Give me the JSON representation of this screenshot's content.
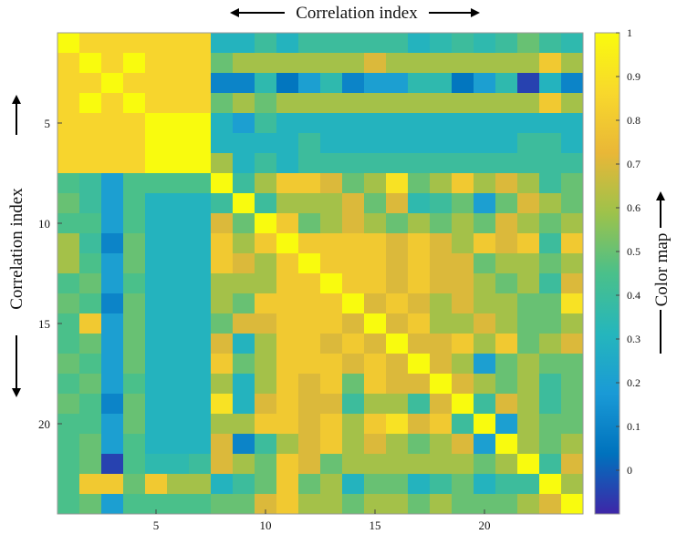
{
  "chart_data": {
    "type": "heatmap",
    "title": "Correlation index",
    "xlabel": "Correlation index",
    "ylabel": "Correlation index",
    "colorbar_label": "Color map",
    "n_rows": 24,
    "n_cols": 24,
    "x_ticks": [
      5,
      10,
      15,
      20
    ],
    "y_ticks": [
      5,
      10,
      15,
      20
    ],
    "colorbar_range": [
      -0.1,
      1.0
    ],
    "colorbar_ticks": [
      "0",
      "0.1",
      "0.2",
      "0.3",
      "0.4",
      "0.5",
      "0.6",
      "0.7",
      "0.8",
      "0.9",
      "1"
    ],
    "colormap": [
      "#3e26a8",
      "#0072bd",
      "#1a9ad6",
      "#25b6bc",
      "#4ac08a",
      "#9dc24b",
      "#e9b737",
      "#f8d82c",
      "#f9fb0e"
    ],
    "values": [
      [
        1,
        0.85,
        0.85,
        0.85,
        0.85,
        0.85,
        0.85,
        0.3,
        0.3,
        0.4,
        0.3,
        0.4,
        0.4,
        0.4,
        0.4,
        0.4,
        0.3,
        0.35,
        0.4,
        0.35,
        0.4,
        0.5,
        0.4,
        0.35
      ],
      [
        0.85,
        1,
        0.85,
        1,
        0.85,
        0.85,
        0.85,
        0.5,
        0.6,
        0.6,
        0.6,
        0.6,
        0.6,
        0.6,
        0.7,
        0.6,
        0.6,
        0.6,
        0.6,
        0.6,
        0.6,
        0.6,
        0.8,
        0.6
      ],
      [
        0.85,
        0.85,
        1,
        0.85,
        0.85,
        0.85,
        0.85,
        0.1,
        0.1,
        0.35,
        0.05,
        0.2,
        0.35,
        0.1,
        0.2,
        0.2,
        0.35,
        0.35,
        0.05,
        0.2,
        0.35,
        -0.05,
        0.3,
        0.1
      ],
      [
        0.85,
        1,
        0.85,
        1,
        0.85,
        0.85,
        0.85,
        0.5,
        0.6,
        0.5,
        0.6,
        0.6,
        0.6,
        0.6,
        0.6,
        0.6,
        0.6,
        0.6,
        0.6,
        0.6,
        0.6,
        0.6,
        0.8,
        0.6
      ],
      [
        0.85,
        0.85,
        0.85,
        0.85,
        1,
        1,
        1,
        0.3,
        0.2,
        0.4,
        0.3,
        0.3,
        0.3,
        0.3,
        0.3,
        0.3,
        0.3,
        0.3,
        0.3,
        0.3,
        0.3,
        0.3,
        0.3,
        0.3
      ],
      [
        0.85,
        0.85,
        0.85,
        0.85,
        1,
        1,
        1,
        0.3,
        0.3,
        0.3,
        0.3,
        0.4,
        0.3,
        0.3,
        0.3,
        0.3,
        0.3,
        0.3,
        0.3,
        0.3,
        0.3,
        0.4,
        0.4,
        0.3
      ],
      [
        0.85,
        0.85,
        0.85,
        0.85,
        1,
        1,
        1,
        0.6,
        0.3,
        0.4,
        0.3,
        0.4,
        0.4,
        0.4,
        0.4,
        0.4,
        0.4,
        0.4,
        0.4,
        0.4,
        0.4,
        0.4,
        0.4,
        0.4
      ],
      [
        0.45,
        0.4,
        0.2,
        0.45,
        0.45,
        0.45,
        0.45,
        1,
        0.4,
        0.6,
        0.8,
        0.8,
        0.7,
        0.5,
        0.6,
        0.9,
        0.5,
        0.6,
        0.8,
        0.6,
        0.7,
        0.6,
        0.4,
        0.5
      ],
      [
        0.5,
        0.4,
        0.2,
        0.45,
        0.3,
        0.3,
        0.3,
        0.4,
        1,
        0.4,
        0.6,
        0.6,
        0.6,
        0.7,
        0.5,
        0.7,
        0.35,
        0.4,
        0.5,
        0.2,
        0.5,
        0.7,
        0.6,
        0.5
      ],
      [
        0.45,
        0.45,
        0.2,
        0.45,
        0.3,
        0.3,
        0.3,
        0.7,
        0.5,
        1,
        0.8,
        0.5,
        0.6,
        0.7,
        0.6,
        0.5,
        0.6,
        0.5,
        0.6,
        0.5,
        0.7,
        0.6,
        0.5,
        0.6
      ],
      [
        0.6,
        0.4,
        0.1,
        0.5,
        0.3,
        0.3,
        0.3,
        0.8,
        0.6,
        0.8,
        1,
        0.8,
        0.8,
        0.8,
        0.8,
        0.7,
        0.8,
        0.7,
        0.6,
        0.8,
        0.7,
        0.8,
        0.4,
        0.8
      ],
      [
        0.6,
        0.45,
        0.2,
        0.5,
        0.3,
        0.3,
        0.3,
        0.8,
        0.7,
        0.6,
        0.8,
        1,
        0.8,
        0.8,
        0.8,
        0.7,
        0.8,
        0.7,
        0.7,
        0.5,
        0.6,
        0.6,
        0.5,
        0.6
      ],
      [
        0.45,
        0.5,
        0.2,
        0.45,
        0.3,
        0.3,
        0.3,
        0.6,
        0.6,
        0.6,
        0.8,
        0.8,
        1,
        0.8,
        0.8,
        0.7,
        0.8,
        0.7,
        0.7,
        0.6,
        0.5,
        0.6,
        0.4,
        0.7
      ],
      [
        0.5,
        0.45,
        0.1,
        0.5,
        0.3,
        0.3,
        0.3,
        0.6,
        0.5,
        0.8,
        0.8,
        0.8,
        0.8,
        1,
        0.7,
        0.8,
        0.7,
        0.6,
        0.7,
        0.6,
        0.6,
        0.5,
        0.5,
        0.9
      ],
      [
        0.45,
        0.8,
        0.2,
        0.5,
        0.3,
        0.3,
        0.3,
        0.5,
        0.7,
        0.7,
        0.8,
        0.8,
        0.8,
        0.7,
        1,
        0.7,
        0.8,
        0.6,
        0.6,
        0.7,
        0.6,
        0.5,
        0.5,
        0.6
      ],
      [
        0.45,
        0.5,
        0.2,
        0.5,
        0.3,
        0.3,
        0.3,
        0.7,
        0.3,
        0.6,
        0.8,
        0.8,
        0.7,
        0.8,
        0.7,
        1,
        0.7,
        0.7,
        0.8,
        0.6,
        0.8,
        0.5,
        0.6,
        0.7
      ],
      [
        0.5,
        0.45,
        0.2,
        0.5,
        0.3,
        0.3,
        0.3,
        0.8,
        0.5,
        0.6,
        0.8,
        0.8,
        0.8,
        0.7,
        0.8,
        0.7,
        1,
        0.7,
        0.6,
        0.2,
        0.5,
        0.6,
        0.5,
        0.5
      ],
      [
        0.45,
        0.5,
        0.2,
        0.45,
        0.3,
        0.3,
        0.3,
        0.6,
        0.3,
        0.6,
        0.8,
        0.7,
        0.8,
        0.5,
        0.8,
        0.7,
        0.7,
        1,
        0.7,
        0.6,
        0.5,
        0.6,
        0.4,
        0.5
      ],
      [
        0.5,
        0.45,
        0.1,
        0.5,
        0.3,
        0.3,
        0.3,
        0.9,
        0.3,
        0.7,
        0.8,
        0.7,
        0.7,
        0.4,
        0.6,
        0.6,
        0.4,
        0.7,
        1,
        0.4,
        0.7,
        0.6,
        0.4,
        0.5
      ],
      [
        0.45,
        0.45,
        0.2,
        0.5,
        0.3,
        0.3,
        0.3,
        0.6,
        0.6,
        0.8,
        0.8,
        0.7,
        0.8,
        0.6,
        0.8,
        0.9,
        0.7,
        0.8,
        0.4,
        1,
        0.2,
        0.6,
        0.5,
        0.5
      ],
      [
        0.45,
        0.5,
        0.2,
        0.45,
        0.3,
        0.3,
        0.3,
        0.7,
        0.1,
        0.4,
        0.6,
        0.7,
        0.8,
        0.6,
        0.7,
        0.6,
        0.5,
        0.6,
        0.7,
        0.2,
        1,
        0.6,
        0.5,
        0.6
      ],
      [
        0.45,
        0.5,
        -0.05,
        0.45,
        0.35,
        0.35,
        0.4,
        0.7,
        0.6,
        0.5,
        0.8,
        0.7,
        0.5,
        0.6,
        0.6,
        0.6,
        0.6,
        0.6,
        0.6,
        0.5,
        0.6,
        1,
        0.4,
        0.7
      ],
      [
        0.45,
        0.8,
        0.8,
        0.5,
        0.8,
        0.6,
        0.6,
        0.3,
        0.4,
        0.5,
        0.8,
        0.5,
        0.6,
        0.3,
        0.5,
        0.5,
        0.3,
        0.4,
        0.5,
        0.3,
        0.4,
        0.4,
        1,
        0.6
      ],
      [
        0.45,
        0.5,
        0.2,
        0.45,
        0.45,
        0.45,
        0.45,
        0.5,
        0.5,
        0.7,
        0.8,
        0.6,
        0.6,
        0.5,
        0.6,
        0.6,
        0.5,
        0.6,
        0.5,
        0.5,
        0.5,
        0.6,
        0.7,
        1
      ]
    ]
  }
}
